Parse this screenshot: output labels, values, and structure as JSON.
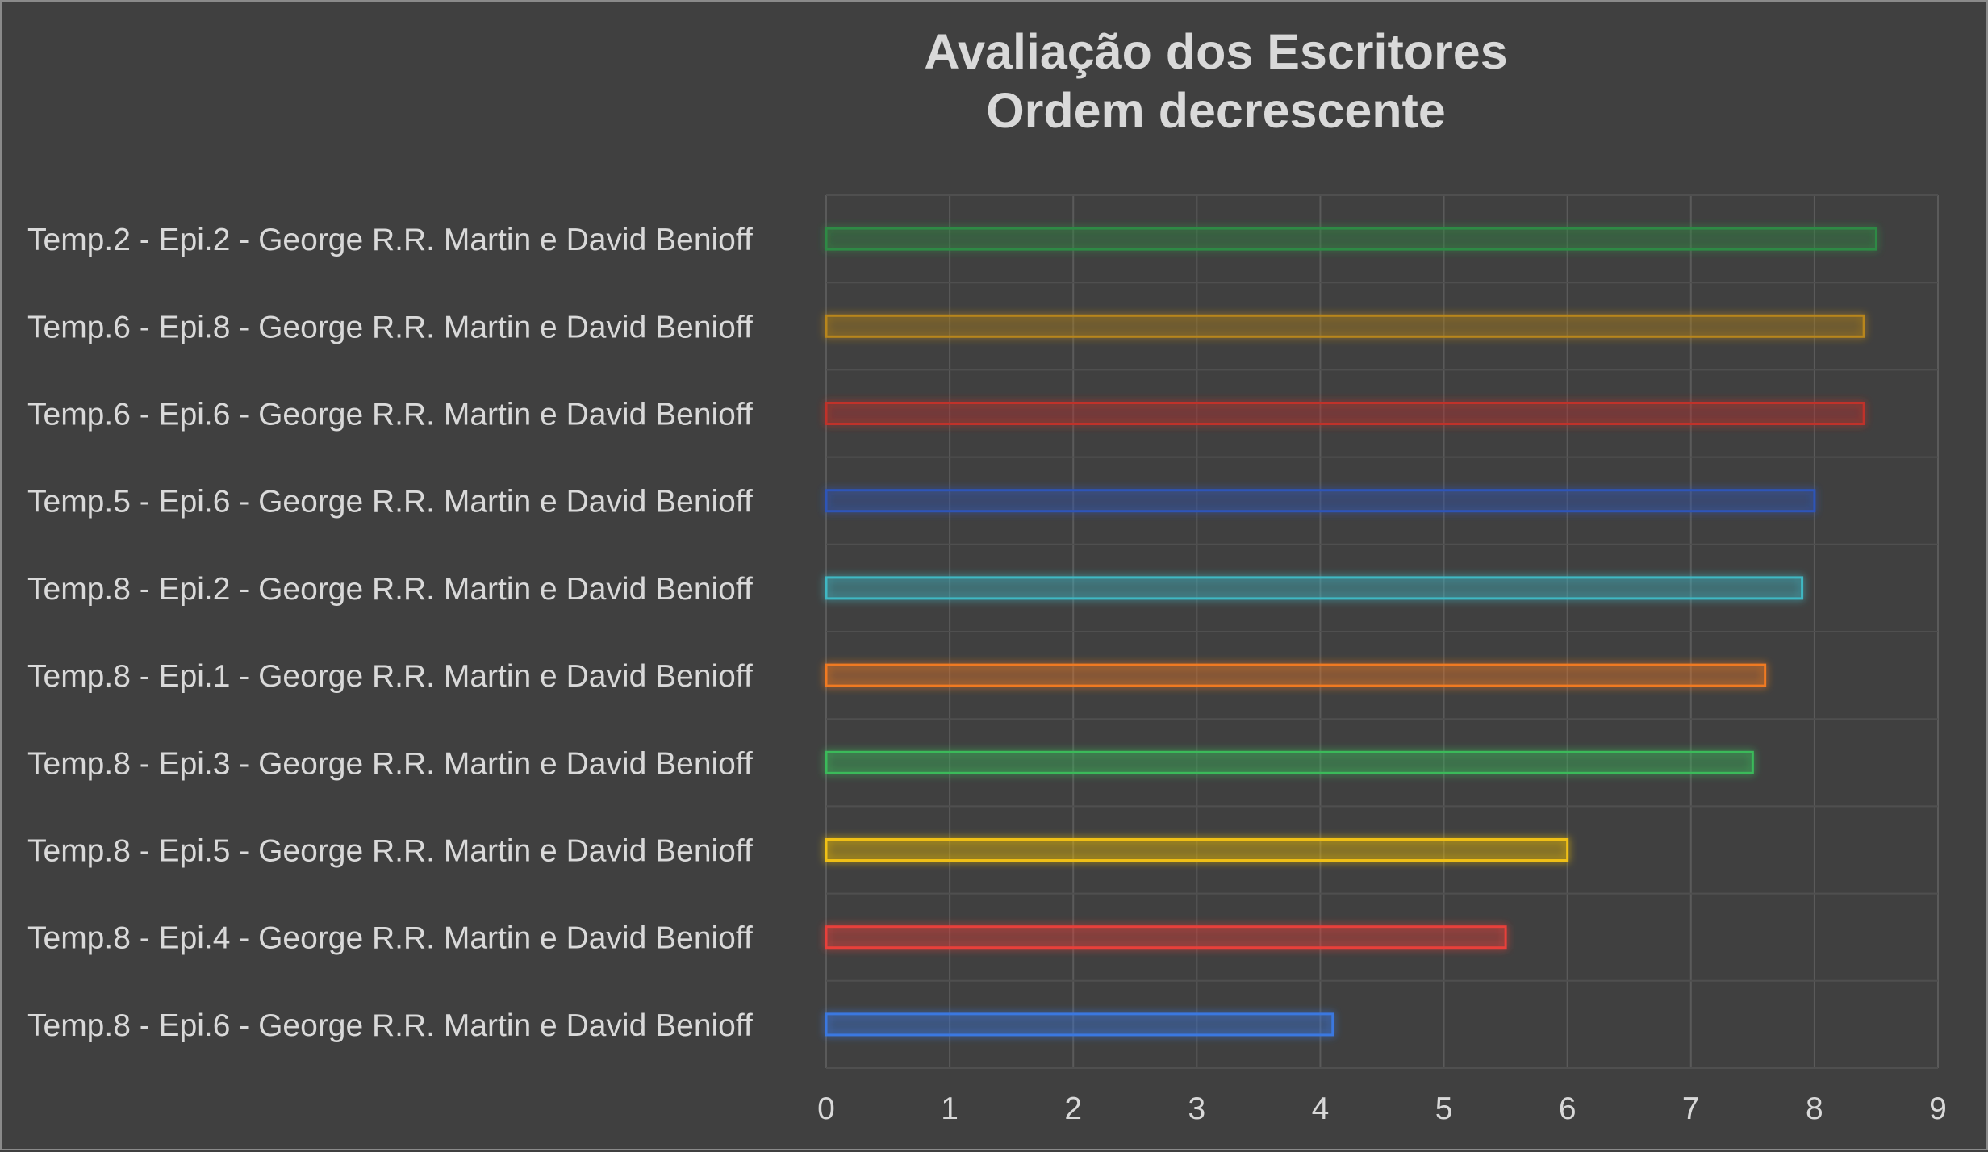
{
  "chart_data": {
    "type": "bar",
    "orientation": "horizontal",
    "title": "Avaliação dos Escritores",
    "subtitle": "Ordem decrescente",
    "xlabel": "",
    "ylabel": "",
    "xlim": [
      0,
      9
    ],
    "ticks": [
      0,
      1,
      2,
      3,
      4,
      5,
      6,
      7,
      8,
      9
    ],
    "grid": true,
    "legend": "none",
    "categories": [
      "Temp.2 - Epi.2 - George R.R. Martin e David Benioff",
      "Temp.6 - Epi.8 - George R.R. Martin e David Benioff",
      "Temp.6 - Epi.6 - George R.R. Martin e David Benioff",
      "Temp.5 - Epi.6 - George R.R. Martin e David Benioff",
      "Temp.8 - Epi.2 - George R.R. Martin e David Benioff",
      "Temp.8 - Epi.1 - George R.R. Martin e David Benioff",
      "Temp.8 - Epi.3 - George R.R. Martin e David Benioff",
      "Temp.8 - Epi.5 - George R.R. Martin e David Benioff",
      "Temp.8 - Epi.4 - George R.R. Martin e David Benioff",
      "Temp.8 - Epi.6 - George R.R. Martin e David Benioff"
    ],
    "values": [
      8.5,
      8.4,
      8.4,
      8.0,
      7.9,
      7.6,
      7.5,
      6.0,
      5.5,
      4.1
    ],
    "colors": [
      "#2f8a45",
      "#b8861a",
      "#c0302c",
      "#2f55b8",
      "#3fb8c4",
      "#f07a22",
      "#3aba5a",
      "#f0c018",
      "#e8403a",
      "#3a78e0"
    ]
  }
}
